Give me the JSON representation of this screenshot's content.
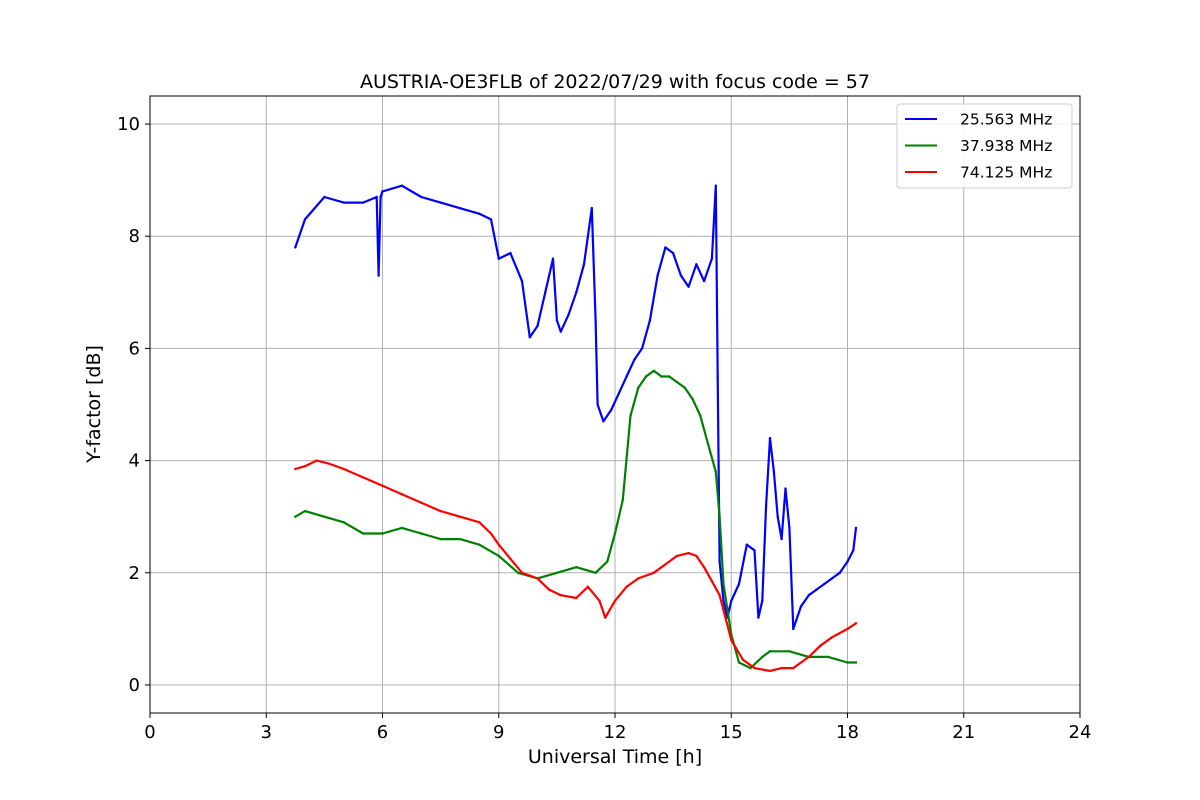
{
  "chart_data": {
    "type": "line",
    "title": "AUSTRIA-OE3FLB of 2022/07/29 with focus code = 57",
    "xlabel": "Universal Time [h]",
    "ylabel": "Y-factor [dB]",
    "xlim": [
      0,
      24
    ],
    "ylim": [
      -0.5,
      10.5
    ],
    "xticks": [
      "0",
      "3",
      "6",
      "9",
      "12",
      "15",
      "18",
      "21",
      "24"
    ],
    "yticks": [
      "0",
      "2",
      "4",
      "6",
      "8",
      "10"
    ],
    "grid": true,
    "legend_position": "top-right",
    "series": [
      {
        "name": "25.563 MHz",
        "color": "#0000ff",
        "x": [
          3.75,
          4.0,
          4.5,
          5.0,
          5.5,
          5.85,
          5.9,
          5.95,
          6.0,
          6.5,
          7.0,
          7.5,
          8.0,
          8.5,
          8.8,
          9.0,
          9.3,
          9.6,
          9.8,
          10.0,
          10.2,
          10.4,
          10.5,
          10.6,
          10.8,
          11.0,
          11.2,
          11.4,
          11.5,
          11.55,
          11.7,
          11.9,
          12.1,
          12.3,
          12.5,
          12.7,
          12.9,
          13.1,
          13.3,
          13.5,
          13.7,
          13.9,
          14.1,
          14.3,
          14.5,
          14.6,
          14.65,
          14.7,
          14.8,
          14.9,
          15.0,
          15.2,
          15.4,
          15.6,
          15.7,
          15.8,
          15.9,
          16.0,
          16.1,
          16.2,
          16.3,
          16.4,
          16.5,
          16.6,
          16.8,
          17.0,
          17.2,
          17.4,
          17.6,
          17.8,
          18.0,
          18.15,
          18.22
        ],
        "values": [
          7.8,
          8.3,
          8.7,
          8.6,
          8.6,
          8.7,
          7.3,
          8.7,
          8.8,
          8.9,
          8.7,
          8.6,
          8.5,
          8.4,
          8.3,
          7.6,
          7.7,
          7.2,
          6.2,
          6.4,
          7.0,
          7.6,
          6.5,
          6.3,
          6.6,
          7.0,
          7.5,
          8.5,
          6.5,
          5.0,
          4.7,
          4.9,
          5.2,
          5.5,
          5.8,
          6.0,
          6.5,
          7.3,
          7.8,
          7.7,
          7.3,
          7.1,
          7.5,
          7.2,
          7.6,
          8.9,
          5.5,
          2.2,
          1.5,
          1.2,
          1.5,
          1.8,
          2.5,
          2.4,
          1.2,
          1.5,
          3.2,
          4.4,
          3.8,
          3.0,
          2.6,
          3.5,
          2.8,
          1.0,
          1.4,
          1.6,
          1.7,
          1.8,
          1.9,
          2.0,
          2.2,
          2.4,
          2.8
        ]
      },
      {
        "name": "37.938 MHz",
        "color": "#008000",
        "x": [
          3.75,
          4.0,
          4.5,
          5.0,
          5.5,
          6.0,
          6.5,
          7.0,
          7.5,
          8.0,
          8.5,
          9.0,
          9.5,
          10.0,
          10.5,
          11.0,
          11.5,
          11.8,
          12.0,
          12.2,
          12.4,
          12.6,
          12.8,
          13.0,
          13.2,
          13.4,
          13.6,
          13.8,
          14.0,
          14.2,
          14.4,
          14.6,
          14.7,
          14.8,
          15.0,
          15.2,
          15.5,
          15.8,
          16.0,
          16.5,
          17.0,
          17.5,
          18.0,
          18.22
        ],
        "values": [
          3.0,
          3.1,
          3.0,
          2.9,
          2.7,
          2.7,
          2.8,
          2.7,
          2.6,
          2.6,
          2.5,
          2.3,
          2.0,
          1.9,
          2.0,
          2.1,
          2.0,
          2.2,
          2.7,
          3.3,
          4.8,
          5.3,
          5.5,
          5.6,
          5.5,
          5.5,
          5.4,
          5.3,
          5.1,
          4.8,
          4.3,
          3.8,
          3.0,
          1.8,
          0.9,
          0.4,
          0.3,
          0.5,
          0.6,
          0.6,
          0.5,
          0.5,
          0.4,
          0.4
        ]
      },
      {
        "name": "74.125 MHz",
        "color": "#ff0000",
        "x": [
          3.75,
          4.0,
          4.3,
          4.6,
          5.0,
          5.5,
          6.0,
          6.5,
          7.0,
          7.5,
          8.0,
          8.5,
          8.8,
          9.0,
          9.3,
          9.6,
          10.0,
          10.3,
          10.6,
          11.0,
          11.3,
          11.6,
          11.75,
          12.0,
          12.3,
          12.6,
          13.0,
          13.3,
          13.6,
          13.9,
          14.1,
          14.3,
          14.5,
          14.7,
          15.0,
          15.3,
          15.6,
          16.0,
          16.3,
          16.6,
          17.0,
          17.3,
          17.6,
          18.0,
          18.22
        ],
        "values": [
          3.85,
          3.9,
          4.0,
          3.95,
          3.85,
          3.7,
          3.55,
          3.4,
          3.25,
          3.1,
          3.0,
          2.9,
          2.7,
          2.5,
          2.25,
          2.0,
          1.9,
          1.7,
          1.6,
          1.55,
          1.75,
          1.5,
          1.2,
          1.5,
          1.75,
          1.9,
          2.0,
          2.15,
          2.3,
          2.35,
          2.3,
          2.1,
          1.85,
          1.6,
          0.8,
          0.45,
          0.3,
          0.25,
          0.3,
          0.3,
          0.5,
          0.7,
          0.85,
          1.0,
          1.1
        ]
      }
    ]
  }
}
